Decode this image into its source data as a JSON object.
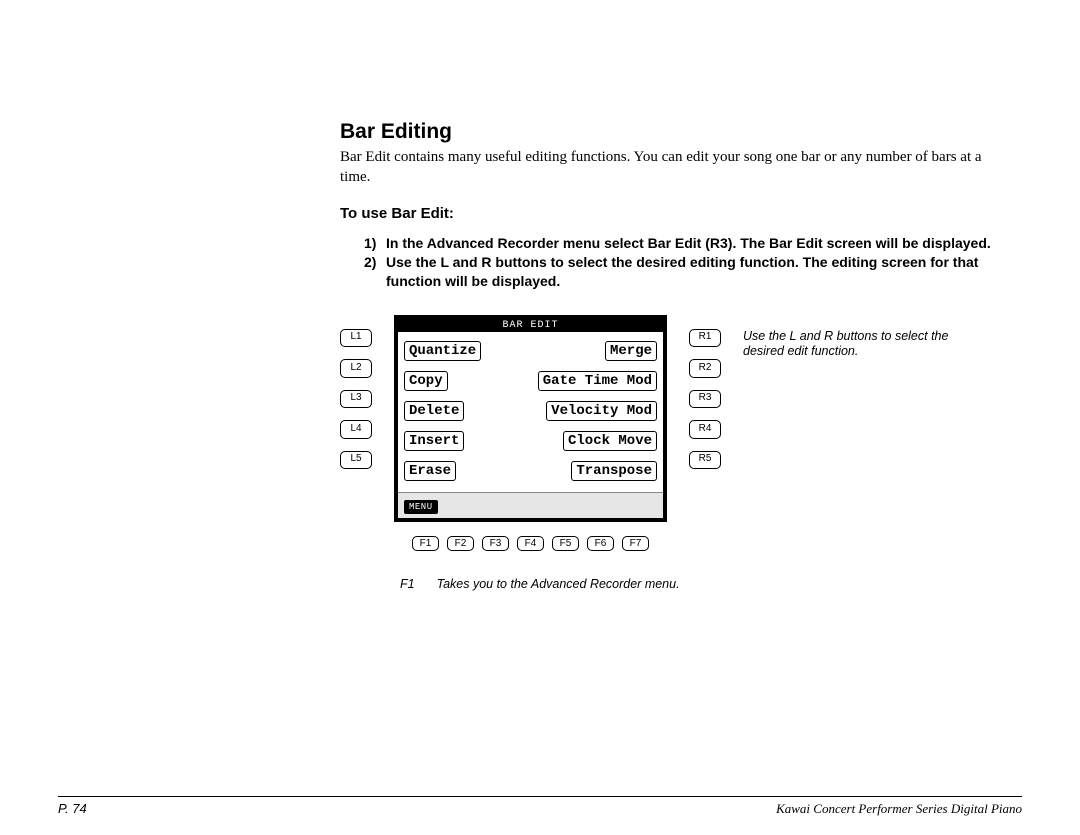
{
  "title": "Bar Editing",
  "intro": "Bar Edit contains many useful editing functions. You can edit your song one bar or any number of bars at a time.",
  "subhead": "To use Bar Edit:",
  "steps": [
    {
      "num": "1)",
      "text": "In the Advanced Recorder menu select Bar Edit (R3). The Bar Edit screen will be displayed."
    },
    {
      "num": "2)",
      "text": "Use the L and R buttons to select the desired editing function. The editing screen for that function will be displayed."
    }
  ],
  "screen": {
    "header": "BAR EDIT",
    "rows": [
      {
        "l": "L1",
        "left": "Quantize",
        "right": "Merge",
        "r": "R1"
      },
      {
        "l": "L2",
        "left": "Copy",
        "right": "Gate Time Mod",
        "r": "R2"
      },
      {
        "l": "L3",
        "left": "Delete",
        "right": "Velocity Mod",
        "r": "R3"
      },
      {
        "l": "L4",
        "left": "Insert",
        "right": "Clock Move",
        "r": "R4"
      },
      {
        "l": "L5",
        "left": "Erase",
        "right": "Transpose",
        "r": "R5"
      }
    ],
    "footer_chip": "MENU",
    "fkeys": [
      "F1",
      "F2",
      "F3",
      "F4",
      "F5",
      "F6",
      "F7"
    ]
  },
  "side_note": "Use the L and R buttons to select the desired edit function.",
  "f_caption": {
    "key": "F1",
    "text": "Takes you to the Advanced Recorder menu."
  },
  "footer": {
    "page": "P. 74",
    "book": "Kawai Concert Performer Series Digital Piano"
  }
}
